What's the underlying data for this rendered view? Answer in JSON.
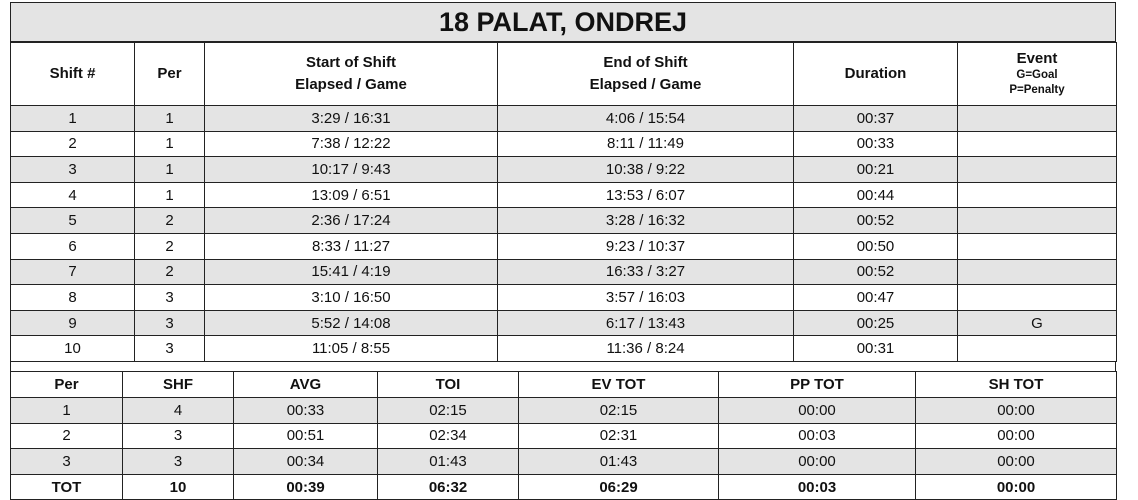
{
  "title": "18 PALAT, ONDREJ",
  "shift_table": {
    "headers": {
      "shift": "Shift #",
      "per": "Per",
      "start_line1": "Start of Shift",
      "start_line2": "Elapsed / Game",
      "end_line1": "End of Shift",
      "end_line2": "Elapsed / Game",
      "duration": "Duration",
      "event_line1": "Event",
      "event_line2": "G=Goal",
      "event_line3": "P=Penalty"
    },
    "rows": [
      {
        "shift": "1",
        "per": "1",
        "start": "3:29 / 16:31",
        "end": "4:06 / 15:54",
        "duration": "00:37",
        "event": ""
      },
      {
        "shift": "2",
        "per": "1",
        "start": "7:38 / 12:22",
        "end": "8:11 / 11:49",
        "duration": "00:33",
        "event": ""
      },
      {
        "shift": "3",
        "per": "1",
        "start": "10:17 / 9:43",
        "end": "10:38 / 9:22",
        "duration": "00:21",
        "event": ""
      },
      {
        "shift": "4",
        "per": "1",
        "start": "13:09 / 6:51",
        "end": "13:53 / 6:07",
        "duration": "00:44",
        "event": ""
      },
      {
        "shift": "5",
        "per": "2",
        "start": "2:36 / 17:24",
        "end": "3:28 / 16:32",
        "duration": "00:52",
        "event": ""
      },
      {
        "shift": "6",
        "per": "2",
        "start": "8:33 / 11:27",
        "end": "9:23 / 10:37",
        "duration": "00:50",
        "event": ""
      },
      {
        "shift": "7",
        "per": "2",
        "start": "15:41 / 4:19",
        "end": "16:33 / 3:27",
        "duration": "00:52",
        "event": ""
      },
      {
        "shift": "8",
        "per": "3",
        "start": "3:10 / 16:50",
        "end": "3:57 / 16:03",
        "duration": "00:47",
        "event": ""
      },
      {
        "shift": "9",
        "per": "3",
        "start": "5:52 / 14:08",
        "end": "6:17 / 13:43",
        "duration": "00:25",
        "event": "G"
      },
      {
        "shift": "10",
        "per": "3",
        "start": "11:05 / 8:55",
        "end": "11:36 / 8:24",
        "duration": "00:31",
        "event": ""
      }
    ]
  },
  "summary_table": {
    "headers": {
      "per": "Per",
      "shf": "SHF",
      "avg": "AVG",
      "toi": "TOI",
      "ev_tot": "EV TOT",
      "pp_tot": "PP TOT",
      "sh_tot": "SH TOT"
    },
    "rows": [
      {
        "per": "1",
        "shf": "4",
        "avg": "00:33",
        "toi": "02:15",
        "ev_tot": "02:15",
        "pp_tot": "00:00",
        "sh_tot": "00:00"
      },
      {
        "per": "2",
        "shf": "3",
        "avg": "00:51",
        "toi": "02:34",
        "ev_tot": "02:31",
        "pp_tot": "00:03",
        "sh_tot": "00:00"
      },
      {
        "per": "3",
        "shf": "3",
        "avg": "00:34",
        "toi": "01:43",
        "ev_tot": "01:43",
        "pp_tot": "00:00",
        "sh_tot": "00:00"
      }
    ],
    "total": {
      "per": "TOT",
      "shf": "10",
      "avg": "00:39",
      "toi": "06:32",
      "ev_tot": "06:29",
      "pp_tot": "00:03",
      "sh_tot": "00:00"
    }
  },
  "colors": {
    "shade": "#e4e4e4",
    "border": "#222222"
  }
}
